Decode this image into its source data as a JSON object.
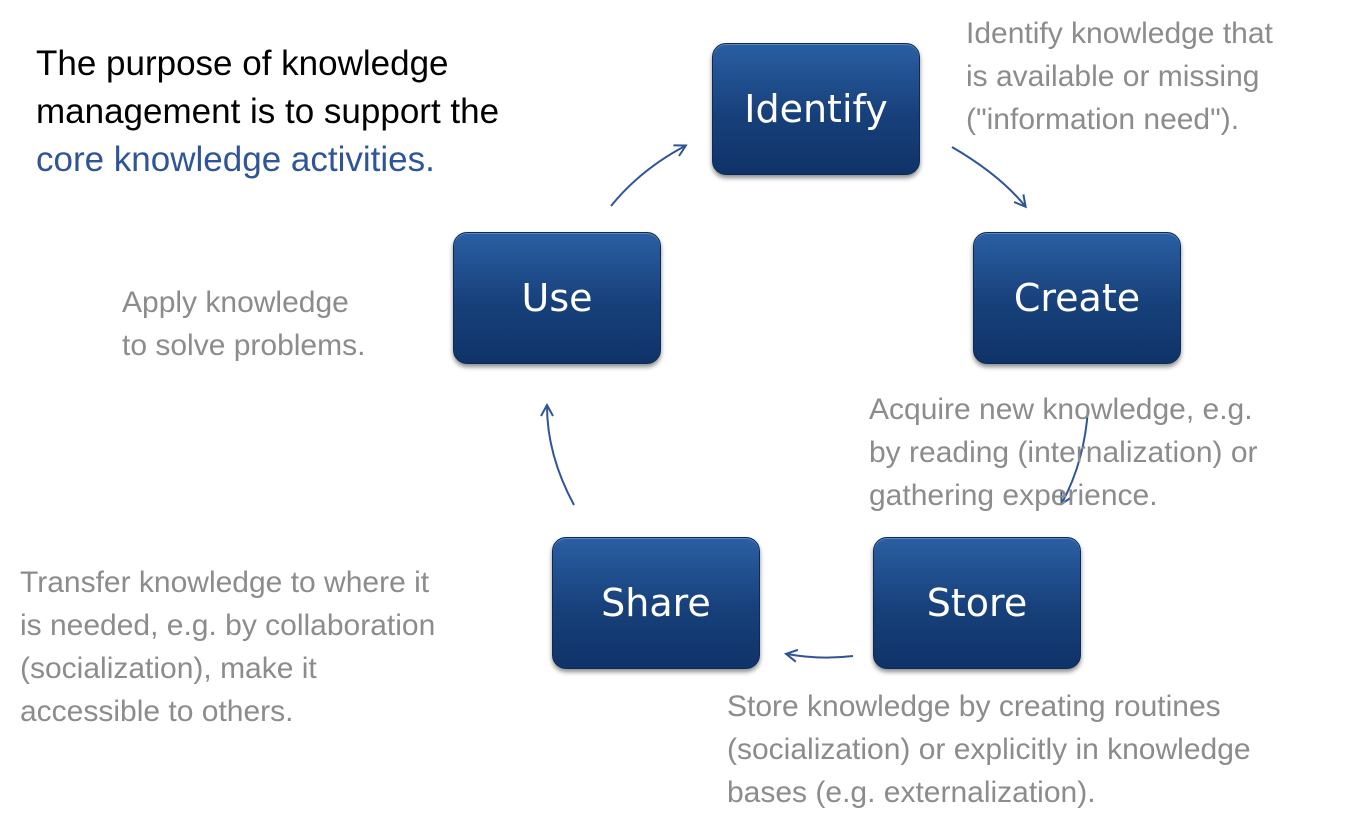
{
  "intro": {
    "line1": "The purpose of knowledge",
    "line2": "management is to support the",
    "line3": "core knowledge activities."
  },
  "nodes": {
    "identify": "Identify",
    "create": "Create",
    "store": "Store",
    "share": "Share",
    "use": "Use"
  },
  "descriptions": {
    "identify": [
      "Identify knowledge that",
      "is available or missing",
      "(\"information need\")."
    ],
    "create": [
      "Acquire new knowledge, e.g.",
      "by reading (internalization) or",
      "gathering experience."
    ],
    "store": [
      "Store knowledge by creating routines",
      "(socialization) or explicitly in knowledge",
      "bases (e.g. externalization)."
    ],
    "share": [
      "Transfer knowledge to where it",
      "is needed, e.g. by collaboration",
      "(socialization), make it",
      "accessible to others."
    ],
    "use": [
      "Apply knowledge",
      "to solve problems."
    ]
  },
  "colors": {
    "node_fill": "#1b4c8c",
    "accent_text": "#2f5597",
    "description_text": "#8c8c8c",
    "arrow": "#2f5597"
  }
}
